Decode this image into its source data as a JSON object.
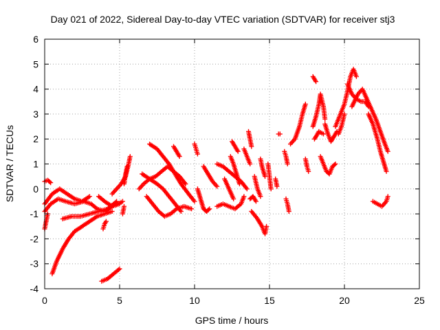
{
  "chart_data": {
    "type": "scatter",
    "title": "Day 021 of 2022, Sidereal Day-to-day VTEC variation (SDTVAR) for receiver stj3",
    "xlabel": "GPS time / hours",
    "ylabel": "SDTVAR / TECUs",
    "xlim": [
      0,
      25
    ],
    "ylim": [
      -4,
      6
    ],
    "x_ticks": [
      0,
      5,
      10,
      15,
      20,
      25
    ],
    "y_ticks": [
      -4,
      -3,
      -2,
      -1,
      0,
      1,
      2,
      3,
      4,
      5,
      6
    ],
    "grid": true,
    "marker": "plus",
    "series_color": "#ff0000",
    "tracks": [
      {
        "name": "track-1",
        "points": [
          [
            0.0,
            -0.9
          ],
          [
            0.4,
            -0.6
          ],
          [
            0.9,
            -0.4
          ],
          [
            1.4,
            -0.5
          ],
          [
            2.0,
            -0.6
          ],
          [
            2.6,
            -0.5
          ],
          [
            3.1,
            -0.6
          ],
          [
            3.5,
            -0.8
          ],
          [
            4.0,
            -0.9
          ],
          [
            4.5,
            -0.7
          ],
          [
            5.0,
            -0.6
          ]
        ]
      },
      {
        "name": "track-2",
        "points": [
          [
            0.0,
            -0.6
          ],
          [
            0.5,
            -0.2
          ],
          [
            1.0,
            0.0
          ],
          [
            1.5,
            -0.2
          ],
          [
            2.0,
            -0.4
          ],
          [
            2.5,
            -0.5
          ],
          [
            3.0,
            -0.3
          ]
        ]
      },
      {
        "name": "track-3",
        "points": [
          [
            0.5,
            -3.4
          ],
          [
            0.8,
            -2.9
          ],
          [
            1.2,
            -2.4
          ],
          [
            1.6,
            -2.0
          ],
          [
            2.0,
            -1.7
          ],
          [
            2.5,
            -1.5
          ],
          [
            3.0,
            -1.3
          ],
          [
            3.5,
            -1.1
          ],
          [
            4.0,
            -1.0
          ],
          [
            4.5,
            -0.9
          ]
        ]
      },
      {
        "name": "track-4",
        "points": [
          [
            1.2,
            -1.2
          ],
          [
            1.8,
            -1.1
          ],
          [
            2.4,
            -1.1
          ],
          [
            3.0,
            -1.0
          ],
          [
            3.6,
            -0.9
          ],
          [
            4.2,
            -0.8
          ],
          [
            4.8,
            -0.5
          ]
        ]
      },
      {
        "name": "track-5",
        "points": [
          [
            3.6,
            -0.3
          ],
          [
            4.0,
            -0.5
          ],
          [
            4.5,
            -0.7
          ],
          [
            4.9,
            -0.6
          ],
          [
            5.2,
            -0.5
          ]
        ]
      },
      {
        "name": "track-6",
        "points": [
          [
            3.8,
            -3.7
          ],
          [
            4.2,
            -3.6
          ],
          [
            4.6,
            -3.4
          ],
          [
            5.0,
            -3.2
          ]
        ]
      },
      {
        "name": "track-7",
        "points": [
          [
            3.9,
            -1.6
          ],
          [
            4.0,
            -1.4
          ],
          [
            4.1,
            -1.3
          ]
        ]
      },
      {
        "name": "track-8",
        "points": [
          [
            0.0,
            -1.6
          ],
          [
            0.1,
            -1.3
          ],
          [
            0.2,
            -1.0
          ]
        ]
      },
      {
        "name": "track-9",
        "points": [
          [
            0.0,
            0.3
          ],
          [
            0.2,
            0.35
          ],
          [
            0.4,
            0.25
          ]
        ]
      },
      {
        "name": "track-10",
        "points": [
          [
            4.5,
            -0.2
          ],
          [
            4.8,
            0.0
          ],
          [
            5.1,
            0.2
          ],
          [
            5.4,
            0.5
          ],
          [
            5.6,
            1.0
          ],
          [
            5.7,
            1.3
          ]
        ]
      },
      {
        "name": "track-11",
        "points": [
          [
            5.3,
            0.2
          ],
          [
            5.4,
            0.6
          ],
          [
            5.5,
            0.9
          ]
        ]
      },
      {
        "name": "track-12",
        "points": [
          [
            5.2,
            -1.0
          ],
          [
            5.3,
            -0.7
          ]
        ]
      },
      {
        "name": "track-13",
        "points": [
          [
            6.3,
            0.0
          ],
          [
            6.6,
            0.2
          ],
          [
            7.0,
            0.4
          ],
          [
            7.4,
            0.5
          ],
          [
            7.8,
            0.7
          ],
          [
            8.2,
            0.9
          ],
          [
            8.6,
            0.7
          ],
          [
            9.0,
            0.5
          ],
          [
            9.4,
            0.2
          ]
        ]
      },
      {
        "name": "track-14",
        "points": [
          [
            6.5,
            0.6
          ],
          [
            7.0,
            0.4
          ],
          [
            7.5,
            0.2
          ],
          [
            7.9,
            0.0
          ],
          [
            8.3,
            -0.3
          ],
          [
            8.7,
            -0.6
          ],
          [
            9.1,
            -0.9
          ]
        ]
      },
      {
        "name": "track-15",
        "points": [
          [
            7.0,
            1.8
          ],
          [
            7.5,
            1.6
          ],
          [
            7.9,
            1.3
          ],
          [
            8.3,
            1.0
          ],
          [
            8.7,
            0.6
          ],
          [
            9.1,
            0.2
          ],
          [
            9.6,
            -0.2
          ],
          [
            10.0,
            -0.5
          ]
        ]
      },
      {
        "name": "track-16",
        "points": [
          [
            6.8,
            -0.3
          ],
          [
            7.2,
            -0.6
          ],
          [
            7.6,
            -0.9
          ],
          [
            8.0,
            -1.1
          ],
          [
            8.4,
            -1.0
          ],
          [
            8.8,
            -0.8
          ],
          [
            9.3,
            -0.7
          ],
          [
            9.8,
            -0.8
          ]
        ]
      },
      {
        "name": "track-17",
        "points": [
          [
            8.6,
            1.7
          ],
          [
            8.8,
            1.5
          ],
          [
            9.0,
            1.3
          ]
        ]
      },
      {
        "name": "track-18",
        "points": [
          [
            10.0,
            1.8
          ],
          [
            10.1,
            1.6
          ],
          [
            10.2,
            1.4
          ]
        ]
      },
      {
        "name": "track-19",
        "points": [
          [
            10.2,
            0.0
          ],
          [
            10.4,
            -0.4
          ],
          [
            10.6,
            -0.8
          ],
          [
            10.8,
            -0.9
          ],
          [
            11.0,
            -0.8
          ]
        ]
      },
      {
        "name": "track-20",
        "points": [
          [
            10.6,
            0.9
          ],
          [
            10.9,
            0.6
          ],
          [
            11.2,
            0.3
          ],
          [
            11.5,
            0.1
          ]
        ]
      },
      {
        "name": "track-21",
        "points": [
          [
            11.5,
            1.0
          ],
          [
            11.9,
            0.9
          ],
          [
            12.3,
            0.7
          ],
          [
            12.7,
            0.5
          ],
          [
            13.1,
            0.3
          ],
          [
            13.5,
            0.0
          ]
        ]
      },
      {
        "name": "track-22",
        "points": [
          [
            11.5,
            -0.7
          ],
          [
            11.9,
            -0.6
          ],
          [
            12.3,
            -0.7
          ],
          [
            12.7,
            -0.8
          ],
          [
            13.1,
            -0.6
          ],
          [
            13.3,
            -0.3
          ]
        ]
      },
      {
        "name": "track-23",
        "points": [
          [
            12.0,
            0.4
          ],
          [
            12.3,
            0.0
          ],
          [
            12.6,
            -0.4
          ]
        ]
      },
      {
        "name": "track-24",
        "points": [
          [
            12.4,
            1.3
          ],
          [
            12.6,
            1.0
          ],
          [
            12.8,
            0.6
          ],
          [
            13.0,
            0.2
          ]
        ]
      },
      {
        "name": "track-25",
        "points": [
          [
            12.5,
            1.9
          ],
          [
            12.7,
            1.7
          ],
          [
            12.9,
            1.5
          ]
        ]
      },
      {
        "name": "track-26",
        "points": [
          [
            13.3,
            1.6
          ],
          [
            13.5,
            1.3
          ],
          [
            13.7,
            1.0
          ]
        ]
      },
      {
        "name": "track-27",
        "points": [
          [
            13.6,
            2.3
          ],
          [
            13.7,
            2.0
          ],
          [
            13.8,
            1.7
          ]
        ]
      },
      {
        "name": "track-28",
        "points": [
          [
            13.7,
            -0.4
          ],
          [
            13.9,
            -0.3
          ],
          [
            14.1,
            -0.5
          ]
        ]
      },
      {
        "name": "track-29",
        "points": [
          [
            13.8,
            -0.9
          ],
          [
            14.2,
            -1.2
          ],
          [
            14.5,
            -1.5
          ],
          [
            14.7,
            -1.8
          ],
          [
            14.8,
            -1.5
          ]
        ]
      },
      {
        "name": "track-30",
        "points": [
          [
            14.0,
            0.5
          ],
          [
            14.2,
            0.0
          ],
          [
            14.4,
            -0.3
          ]
        ]
      },
      {
        "name": "track-31",
        "points": [
          [
            14.4,
            1.2
          ],
          [
            14.5,
            0.9
          ],
          [
            14.7,
            0.5
          ]
        ]
      },
      {
        "name": "track-32",
        "points": [
          [
            14.9,
            1.0
          ],
          [
            15.0,
            0.5
          ],
          [
            15.1,
            0.0
          ]
        ]
      },
      {
        "name": "track-33",
        "points": [
          [
            15.4,
            0.4
          ],
          [
            15.5,
            0.1
          ]
        ]
      },
      {
        "name": "track-34",
        "points": [
          [
            15.6,
            2.2
          ],
          [
            15.7,
            2.2
          ]
        ]
      },
      {
        "name": "track-35",
        "points": [
          [
            16.0,
            1.5
          ],
          [
            16.1,
            1.3
          ],
          [
            16.2,
            1.0
          ]
        ]
      },
      {
        "name": "track-36",
        "points": [
          [
            16.1,
            -0.4
          ],
          [
            16.2,
            -0.6
          ],
          [
            16.3,
            -0.9
          ]
        ]
      },
      {
        "name": "track-37",
        "points": [
          [
            16.4,
            1.8
          ],
          [
            16.7,
            2.0
          ],
          [
            17.0,
            2.5
          ],
          [
            17.2,
            3.0
          ],
          [
            17.4,
            3.4
          ]
        ]
      },
      {
        "name": "track-38",
        "points": [
          [
            17.4,
            1.2
          ],
          [
            17.5,
            0.9
          ],
          [
            17.6,
            0.7
          ]
        ]
      },
      {
        "name": "track-39",
        "points": [
          [
            17.9,
            4.5
          ],
          [
            18.0,
            4.4
          ],
          [
            18.1,
            4.3
          ]
        ]
      },
      {
        "name": "track-40",
        "points": [
          [
            17.9,
            2.5
          ],
          [
            18.1,
            2.9
          ],
          [
            18.3,
            3.4
          ],
          [
            18.4,
            3.8
          ],
          [
            18.6,
            3.3
          ],
          [
            18.7,
            2.8
          ]
        ]
      },
      {
        "name": "track-41",
        "points": [
          [
            18.0,
            2.0
          ],
          [
            18.3,
            2.3
          ],
          [
            18.6,
            2.2
          ]
        ]
      },
      {
        "name": "track-42",
        "points": [
          [
            18.4,
            1.3
          ],
          [
            18.6,
            1.0
          ],
          [
            18.8,
            0.7
          ],
          [
            19.0,
            0.6
          ],
          [
            19.2,
            0.9
          ],
          [
            19.4,
            1.0
          ]
        ]
      },
      {
        "name": "track-43",
        "points": [
          [
            18.7,
            2.6
          ],
          [
            18.9,
            2.2
          ],
          [
            19.1,
            1.9
          ],
          [
            19.3,
            2.1
          ],
          [
            19.5,
            2.3
          ]
        ]
      },
      {
        "name": "track-44",
        "points": [
          [
            19.4,
            2.5
          ],
          [
            19.6,
            2.8
          ],
          [
            19.8,
            3.1
          ],
          [
            20.0,
            3.4
          ],
          [
            20.2,
            3.9
          ],
          [
            20.4,
            4.5
          ],
          [
            20.6,
            4.8
          ],
          [
            20.8,
            4.5
          ]
        ]
      },
      {
        "name": "track-45",
        "points": [
          [
            19.6,
            2.2
          ],
          [
            19.8,
            2.5
          ],
          [
            20.0,
            3.0
          ]
        ]
      },
      {
        "name": "track-46",
        "points": [
          [
            20.2,
            4.2
          ],
          [
            20.5,
            3.8
          ],
          [
            20.8,
            3.6
          ],
          [
            21.1,
            3.5
          ],
          [
            21.4,
            3.5
          ],
          [
            21.6,
            3.3
          ]
        ]
      },
      {
        "name": "track-47",
        "points": [
          [
            20.5,
            3.3
          ],
          [
            20.9,
            3.8
          ],
          [
            21.2,
            4.0
          ],
          [
            21.5,
            3.6
          ],
          [
            21.8,
            3.2
          ],
          [
            22.1,
            2.8
          ],
          [
            22.4,
            2.3
          ],
          [
            22.7,
            1.8
          ],
          [
            22.9,
            1.5
          ]
        ]
      },
      {
        "name": "track-48",
        "points": [
          [
            21.6,
            3.0
          ],
          [
            21.9,
            2.6
          ],
          [
            22.2,
            2.0
          ],
          [
            22.4,
            1.5
          ],
          [
            22.6,
            1.1
          ],
          [
            22.8,
            0.7
          ]
        ]
      },
      {
        "name": "track-49",
        "points": [
          [
            21.9,
            -0.5
          ],
          [
            22.2,
            -0.6
          ],
          [
            22.5,
            -0.7
          ],
          [
            22.8,
            -0.5
          ],
          [
            22.9,
            -0.3
          ]
        ]
      }
    ]
  }
}
